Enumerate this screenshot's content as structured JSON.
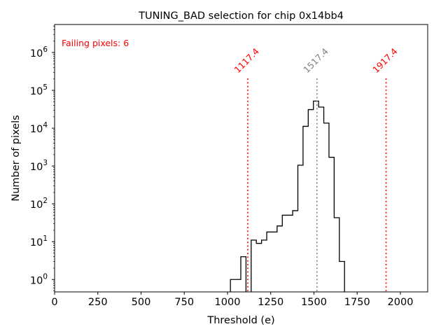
{
  "chart_data": {
    "type": "histogram",
    "title": "TUNING_BAD selection for chip 0x14bb4",
    "xlabel": "Threshold (e)",
    "ylabel": "Number of pixels",
    "xlim": [
      0,
      2158
    ],
    "ylim": [
      0.47,
      5500000
    ],
    "yscale": "log",
    "grid": false,
    "x_ticks": [
      0,
      250,
      500,
      750,
      1000,
      1250,
      1500,
      1750,
      2000
    ],
    "x_tick_labels": [
      "0",
      "250",
      "500",
      "750",
      "1000",
      "1250",
      "1500",
      "1750",
      "2000"
    ],
    "y_ticks": [
      1,
      10,
      100,
      1000,
      10000,
      100000,
      1000000
    ],
    "y_tick_labels": [
      {
        "base": "10",
        "exp": "0"
      },
      {
        "base": "10",
        "exp": "1"
      },
      {
        "base": "10",
        "exp": "2"
      },
      {
        "base": "10",
        "exp": "3"
      },
      {
        "base": "10",
        "exp": "4"
      },
      {
        "base": "10",
        "exp": "5"
      },
      {
        "base": "10",
        "exp": "6"
      }
    ],
    "bin_start": 1017,
    "bin_width": 30,
    "counts": [
      1,
      1,
      4,
      0,
      11,
      9,
      11,
      18,
      18,
      26,
      50,
      50,
      66,
      1050,
      11200,
      31000,
      52000,
      36000,
      13600,
      1700,
      43,
      3
    ],
    "hist_color": "#000000",
    "annotation": {
      "text": "Failing pixels: 6",
      "color": "#ff0000",
      "position": "top-left"
    },
    "vlines": [
      {
        "x": 1117.4,
        "label": "1117.4",
        "color": "#ff0000"
      },
      {
        "x": 1517.4,
        "label": "1517.4",
        "color": "#808080"
      },
      {
        "x": 1917.4,
        "label": "1917.4",
        "color": "#ff0000"
      }
    ]
  }
}
